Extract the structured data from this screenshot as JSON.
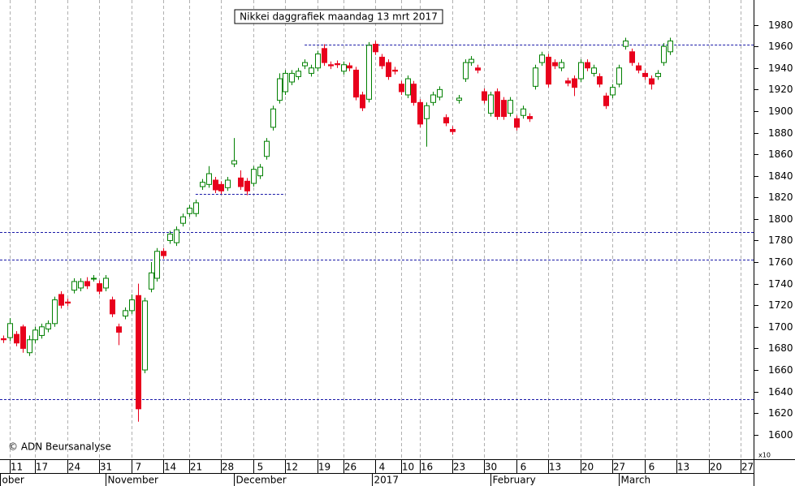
{
  "chart_data": {
    "type": "candlestick",
    "title": "Nikkei daggrafiek maandag 13 mrt 2017",
    "copyright": "© ADN Beursanalyse",
    "unit_label": "x10",
    "up_color": "#008000",
    "down_color": "#e8001c",
    "level_color": "#1a1aa8",
    "ylim": [
      1578,
      2003
    ],
    "yticks": [
      1600,
      1620,
      1640,
      1660,
      1680,
      1700,
      1720,
      1740,
      1760,
      1780,
      1800,
      1820,
      1840,
      1860,
      1880,
      1900,
      1920,
      1940,
      1960,
      1980
    ],
    "xlim": [
      -0.5,
      117
    ],
    "xticks": [
      {
        "value": 1,
        "label": "11"
      },
      {
        "value": 5,
        "label": "17"
      },
      {
        "value": 10,
        "label": "24"
      },
      {
        "value": 15,
        "label": "31"
      },
      {
        "value": 20,
        "label": "7"
      },
      {
        "value": 25,
        "label": "14"
      },
      {
        "value": 29,
        "label": "21"
      },
      {
        "value": 34,
        "label": "28"
      },
      {
        "value": 39,
        "label": "5"
      },
      {
        "value": 44,
        "label": "12"
      },
      {
        "value": 49,
        "label": "19"
      },
      {
        "value": 53,
        "label": "26"
      },
      {
        "value": 58,
        "label": "4"
      },
      {
        "value": 62,
        "label": "10"
      },
      {
        "value": 65,
        "label": "16"
      },
      {
        "value": 70,
        "label": "23"
      },
      {
        "value": 75,
        "label": "30"
      },
      {
        "value": 80,
        "label": "6"
      },
      {
        "value": 85,
        "label": "13"
      },
      {
        "value": 90,
        "label": "20"
      },
      {
        "value": 95,
        "label": "27"
      },
      {
        "value": 100,
        "label": "6"
      },
      {
        "value": 105,
        "label": "13"
      },
      {
        "value": 110,
        "label": "20"
      },
      {
        "value": 115,
        "label": "27"
      }
    ],
    "month_ticks": [
      {
        "value": -0.5,
        "label": "ober"
      },
      {
        "value": 16,
        "label": "November"
      },
      {
        "value": 36,
        "label": "December"
      },
      {
        "value": 57.5,
        "label": "2017"
      },
      {
        "value": 76,
        "label": "February"
      },
      {
        "value": 96,
        "label": "March"
      }
    ],
    "grid": true,
    "levels": [
      {
        "value": 1962,
        "start": 47
      },
      {
        "value": 1823,
        "start": 30,
        "end": 44
      },
      {
        "value": 1788
      },
      {
        "value": 1762
      },
      {
        "value": 1633
      }
    ],
    "ohlc": [
      [
        1689,
        1692,
        1685,
        1688
      ],
      [
        1690,
        1708,
        1687,
        1703
      ],
      [
        1693,
        1696,
        1682,
        1685
      ],
      [
        1700,
        1702,
        1676,
        1680
      ],
      [
        1676,
        1692,
        1673,
        1688
      ],
      [
        1688,
        1700,
        1685,
        1697
      ],
      [
        1692,
        1703,
        1689,
        1700
      ],
      [
        1698,
        1706,
        1695,
        1703
      ],
      [
        1703,
        1728,
        1700,
        1725
      ],
      [
        1730,
        1733,
        1717,
        1720
      ],
      [
        1723,
        1726,
        1719,
        1722
      ],
      [
        1734,
        1745,
        1731,
        1742
      ],
      [
        1736,
        1745,
        1733,
        1742
      ],
      [
        1742,
        1746,
        1735,
        1738
      ],
      [
        1745,
        1748,
        1742,
        1745
      ],
      [
        1740,
        1743,
        1730,
        1733
      ],
      [
        1736,
        1748,
        1733,
        1745
      ],
      [
        1725,
        1728,
        1709,
        1712
      ],
      [
        1700,
        1703,
        1683,
        1695
      ],
      [
        1710,
        1718,
        1707,
        1715
      ],
      [
        1715,
        1730,
        1712,
        1725
      ],
      [
        1729,
        1740,
        1612,
        1624
      ],
      [
        1660,
        1727,
        1657,
        1724
      ],
      [
        1735,
        1760,
        1732,
        1750
      ],
      [
        1745,
        1773,
        1742,
        1770
      ],
      [
        1770,
        1773,
        1763,
        1766
      ],
      [
        1780,
        1789,
        1777,
        1786
      ],
      [
        1778,
        1793,
        1775,
        1790
      ],
      [
        1796,
        1805,
        1793,
        1802
      ],
      [
        1805,
        1813,
        1802,
        1810
      ],
      [
        1805,
        1818,
        1802,
        1815
      ],
      [
        1830,
        1837,
        1827,
        1834
      ],
      [
        1832,
        1849,
        1829,
        1842
      ],
      [
        1836,
        1839,
        1824,
        1827
      ],
      [
        1832,
        1835,
        1823,
        1826
      ],
      [
        1829,
        1839,
        1826,
        1836
      ],
      [
        1851,
        1875,
        1848,
        1854
      ],
      [
        1838,
        1845,
        1827,
        1830
      ],
      [
        1835,
        1838,
        1822,
        1826
      ],
      [
        1833,
        1849,
        1830,
        1846
      ],
      [
        1840,
        1851,
        1837,
        1848
      ],
      [
        1858,
        1875,
        1855,
        1872
      ],
      [
        1885,
        1905,
        1882,
        1902
      ],
      [
        1910,
        1935,
        1907,
        1930
      ],
      [
        1918,
        1938,
        1915,
        1935
      ],
      [
        1927,
        1938,
        1924,
        1935
      ],
      [
        1932,
        1940,
        1929,
        1937
      ],
      [
        1942,
        1948,
        1939,
        1945
      ],
      [
        1935,
        1943,
        1932,
        1940
      ],
      [
        1940,
        1956,
        1937,
        1953
      ],
      [
        1958,
        1962,
        1942,
        1945
      ],
      [
        1943,
        1946,
        1939,
        1942
      ],
      [
        1944,
        1947,
        1940,
        1943
      ],
      [
        1937,
        1946,
        1934,
        1943
      ],
      [
        1942,
        1945,
        1937,
        1940
      ],
      [
        1938,
        1941,
        1910,
        1913
      ],
      [
        1915,
        1918,
        1900,
        1903
      ],
      [
        1911,
        1964,
        1908,
        1961
      ],
      [
        1962,
        1965,
        1952,
        1955
      ],
      [
        1950,
        1953,
        1939,
        1942
      ],
      [
        1945,
        1948,
        1929,
        1932
      ],
      [
        1938,
        1941,
        1934,
        1937
      ],
      [
        1925,
        1928,
        1915,
        1918
      ],
      [
        1915,
        1933,
        1912,
        1930
      ],
      [
        1925,
        1928,
        1905,
        1908
      ],
      [
        1908,
        1911,
        1885,
        1888
      ],
      [
        1893,
        1908,
        1867,
        1905
      ],
      [
        1908,
        1918,
        1905,
        1915
      ],
      [
        1913,
        1923,
        1910,
        1920
      ],
      [
        1894,
        1897,
        1886,
        1889
      ],
      [
        1883,
        1886,
        1878,
        1881
      ],
      [
        1910,
        1915,
        1907,
        1912
      ],
      [
        1930,
        1948,
        1927,
        1945
      ],
      [
        1945,
        1951,
        1942,
        1948
      ],
      [
        1940,
        1943,
        1935,
        1938
      ],
      [
        1918,
        1921,
        1907,
        1910
      ],
      [
        1898,
        1918,
        1895,
        1915
      ],
      [
        1918,
        1921,
        1892,
        1895
      ],
      [
        1910,
        1913,
        1892,
        1895
      ],
      [
        1898,
        1913,
        1895,
        1910
      ],
      [
        1893,
        1896,
        1882,
        1885
      ],
      [
        1896,
        1905,
        1893,
        1902
      ],
      [
        1895,
        1898,
        1890,
        1893
      ],
      [
        1923,
        1943,
        1920,
        1940
      ],
      [
        1945,
        1955,
        1942,
        1952
      ],
      [
        1950,
        1953,
        1922,
        1925
      ],
      [
        1945,
        1948,
        1939,
        1942
      ],
      [
        1940,
        1948,
        1937,
        1945
      ],
      [
        1928,
        1931,
        1923,
        1926
      ],
      [
        1930,
        1933,
        1914,
        1922
      ],
      [
        1930,
        1948,
        1927,
        1945
      ],
      [
        1945,
        1948,
        1937,
        1940
      ],
      [
        1935,
        1943,
        1932,
        1940
      ],
      [
        1932,
        1935,
        1922,
        1925
      ],
      [
        1914,
        1917,
        1902,
        1905
      ],
      [
        1915,
        1925,
        1912,
        1922
      ],
      [
        1925,
        1943,
        1922,
        1940
      ],
      [
        1960,
        1968,
        1957,
        1965
      ],
      [
        1955,
        1958,
        1942,
        1945
      ],
      [
        1942,
        1945,
        1935,
        1938
      ],
      [
        1935,
        1938,
        1929,
        1932
      ],
      [
        1930,
        1933,
        1920,
        1925
      ],
      [
        1932,
        1938,
        1929,
        1935
      ],
      [
        1945,
        1963,
        1942,
        1960
      ],
      [
        1955,
        1968,
        1952,
        1965
      ]
    ]
  }
}
